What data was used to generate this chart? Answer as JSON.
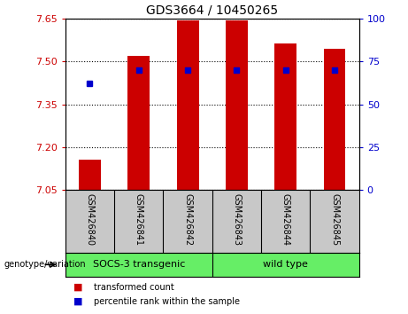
{
  "title": "GDS3664 / 10450265",
  "samples": [
    "GSM426840",
    "GSM426841",
    "GSM426842",
    "GSM426843",
    "GSM426844",
    "GSM426845"
  ],
  "bar_tops": [
    7.155,
    7.52,
    7.645,
    7.643,
    7.565,
    7.545
  ],
  "bar_base": 7.05,
  "percentile_values": [
    7.425,
    7.47,
    7.47,
    7.47,
    7.47,
    7.47
  ],
  "ylim_left": [
    7.05,
    7.65
  ],
  "ylim_right": [
    0,
    100
  ],
  "yticks_left": [
    7.05,
    7.2,
    7.35,
    7.5,
    7.65
  ],
  "yticks_right": [
    0,
    25,
    50,
    75,
    100
  ],
  "groups": [
    {
      "label": "SOCS-3 transgenic",
      "start": 0,
      "end": 3
    },
    {
      "label": "wild type",
      "start": 3,
      "end": 6
    }
  ],
  "bar_color": "#CC0000",
  "marker_color": "#0000CC",
  "bar_width": 0.45,
  "plot_bg": "#FFFFFF",
  "tick_color_left": "#CC0000",
  "tick_color_right": "#0000CC",
  "xlabel_area_color": "#C8C8C8",
  "group_area_color": "#66EE66",
  "arrow_label": "genotype/variation",
  "legend_items": [
    {
      "label": "transformed count",
      "color": "#CC0000"
    },
    {
      "label": "percentile rank within the sample",
      "color": "#0000CC"
    }
  ]
}
